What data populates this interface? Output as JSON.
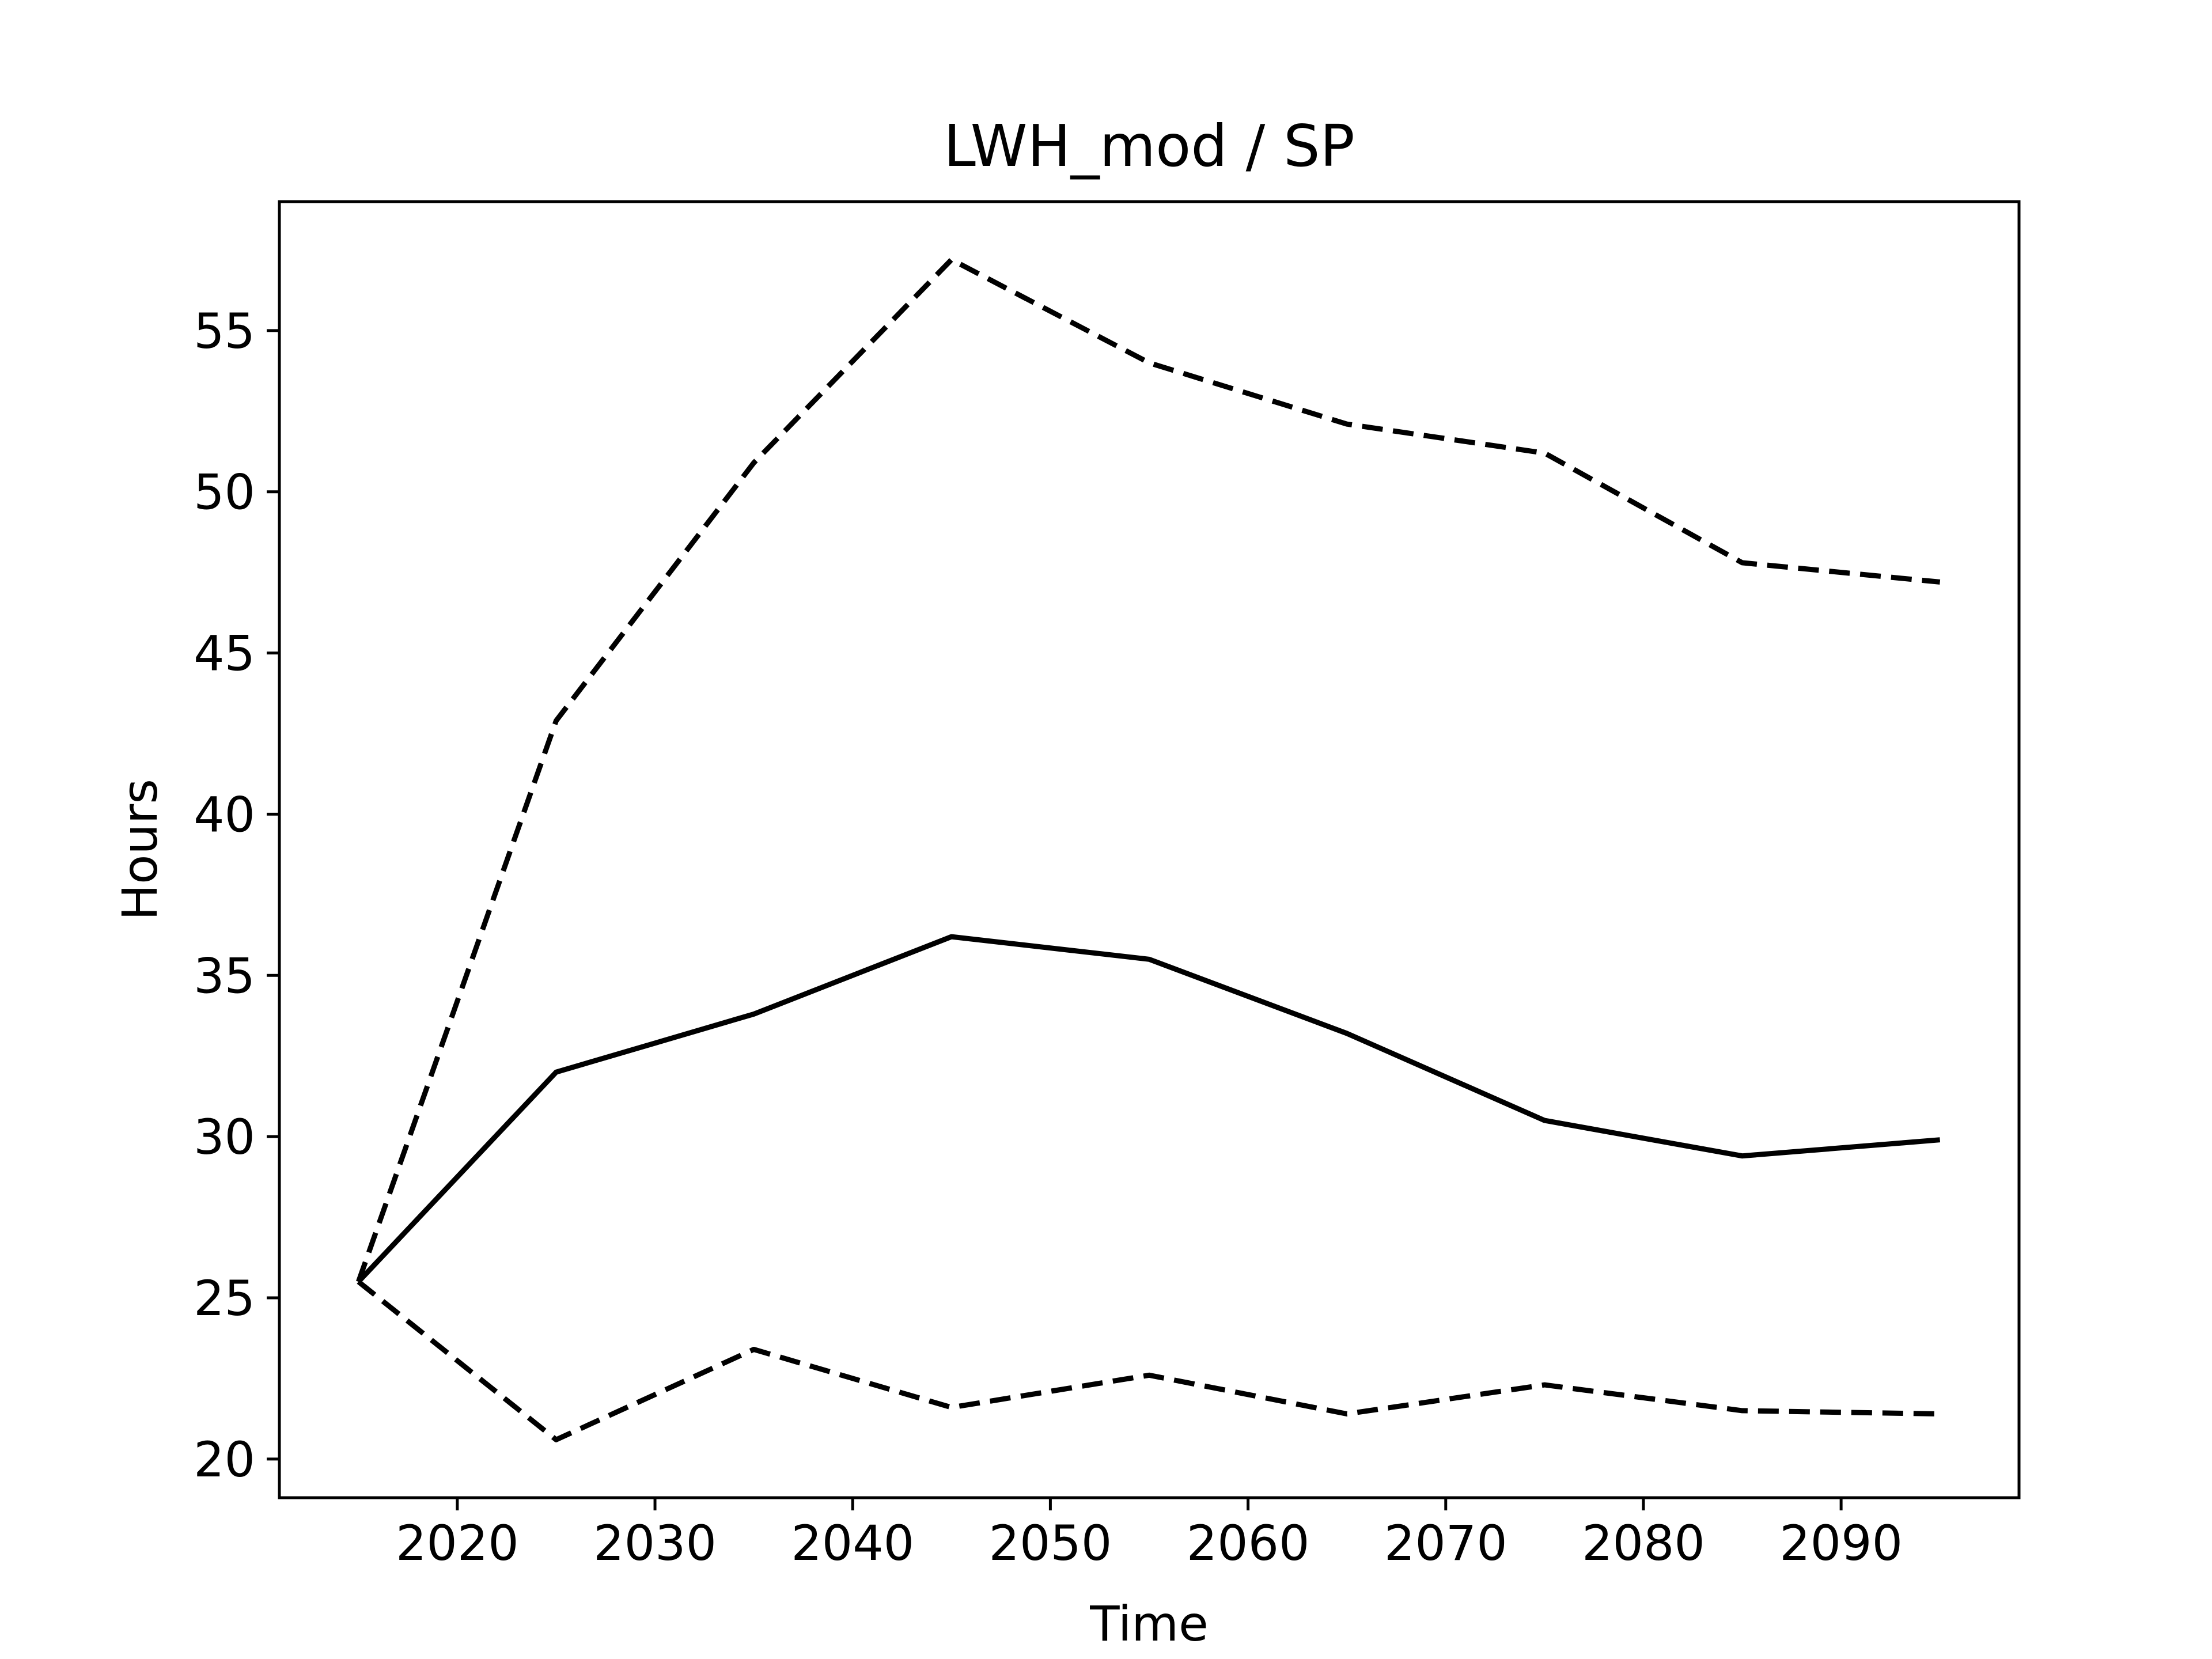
{
  "chart_data": {
    "type": "line",
    "title": "LWH_mod / SP",
    "xlabel": "Time",
    "ylabel": "Hours",
    "xlim": [
      2011,
      2099
    ],
    "ylim": [
      18.8,
      59
    ],
    "xticks": [
      2020,
      2030,
      2040,
      2050,
      2060,
      2070,
      2080,
      2090
    ],
    "yticks": [
      20,
      25,
      30,
      35,
      40,
      45,
      50,
      55
    ],
    "grid": false,
    "legend": "none",
    "line_color": "#000000",
    "x": [
      2015,
      2025,
      2035,
      2045,
      2055,
      2065,
      2075,
      2085,
      2095
    ],
    "series": [
      {
        "style": "dashed",
        "values": [
          25.5,
          42.9,
          50.9,
          57.2,
          54.0,
          52.1,
          51.2,
          47.8,
          47.2
        ]
      },
      {
        "style": "solid",
        "values": [
          25.5,
          32.0,
          33.8,
          36.2,
          35.5,
          33.2,
          30.5,
          29.4,
          29.9
        ]
      },
      {
        "style": "dashed",
        "values": [
          25.5,
          20.6,
          23.4,
          21.6,
          22.6,
          21.4,
          22.3,
          21.5,
          21.4
        ]
      }
    ]
  }
}
